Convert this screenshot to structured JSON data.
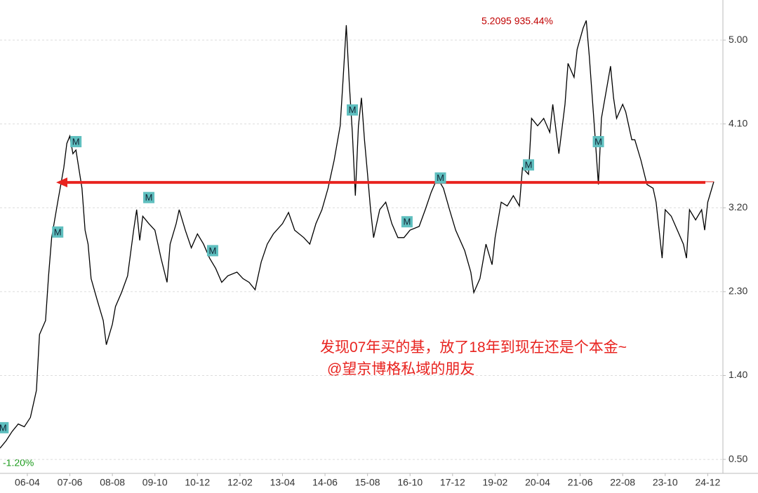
{
  "chart_data": {
    "type": "line",
    "color": "#000000",
    "x": [
      "05-07",
      "05-09",
      "05-11",
      "06-01",
      "06-03",
      "06-05",
      "06-07",
      "06-08",
      "06-10",
      "06-11",
      "06-12",
      "07-02",
      "07-04",
      "07-05",
      "07-06",
      "07-07",
      "07-08",
      "07-10",
      "07-11",
      "07-12",
      "08-01",
      "08-03",
      "08-05",
      "08-06",
      "08-08",
      "08-09",
      "08-11",
      "09-01",
      "09-03",
      "09-04",
      "09-05",
      "09-06",
      "09-08",
      "09-10",
      "09-12",
      "10-02",
      "10-03",
      "10-05",
      "10-06",
      "10-08",
      "10-10",
      "10-12",
      "11-02",
      "11-04",
      "11-06",
      "11-08",
      "11-10",
      "12-01",
      "12-03",
      "12-05",
      "12-07",
      "12-09",
      "12-11",
      "13-01",
      "13-04",
      "13-06",
      "13-08",
      "13-11",
      "14-01",
      "14-03",
      "14-05",
      "14-07",
      "14-09",
      "14-11",
      "14-12",
      "15-01",
      "15-02",
      "15-03",
      "15-04",
      "15-05",
      "15-06",
      "15-07",
      "15-08",
      "15-09",
      "15-10",
      "15-12",
      "16-02",
      "16-04",
      "16-06",
      "16-08",
      "16-10",
      "17-01",
      "17-03",
      "17-05",
      "17-07",
      "17-09",
      "17-11",
      "18-01",
      "18-04",
      "18-06",
      "18-07",
      "18-09",
      "18-11",
      "19-01",
      "19-02",
      "19-04",
      "19-06",
      "19-08",
      "19-10",
      "19-11",
      "20-01",
      "20-02",
      "20-04",
      "20-06",
      "20-08",
      "20-09",
      "20-11",
      "21-01",
      "21-02",
      "21-04",
      "21-05",
      "21-07",
      "21-08",
      "21-09",
      "21-10",
      "21-11",
      "21-12",
      "22-01",
      "22-03",
      "22-04",
      "22-05",
      "22-06",
      "22-08",
      "22-09",
      "22-11",
      "22-12",
      "23-02",
      "23-04",
      "23-06",
      "23-07",
      "23-09",
      "23-10",
      "23-12",
      "24-02",
      "24-04",
      "24-05",
      "24-06",
      "24-08",
      "24-10",
      "24-11",
      "24-12",
      "25-02"
    ],
    "values": [
      0.62,
      0.7,
      0.8,
      0.88,
      0.85,
      0.95,
      1.24,
      1.84,
      1.99,
      2.47,
      2.88,
      3.26,
      3.63,
      3.89,
      3.97,
      3.78,
      3.82,
      3.41,
      2.96,
      2.81,
      2.44,
      2.21,
      1.99,
      1.73,
      1.95,
      2.14,
      2.29,
      2.47,
      2.96,
      3.18,
      2.85,
      3.11,
      3.03,
      2.96,
      2.66,
      2.4,
      2.81,
      3.03,
      3.18,
      2.96,
      2.77,
      2.92,
      2.81,
      2.66,
      2.55,
      2.4,
      2.47,
      2.51,
      2.44,
      2.4,
      2.32,
      2.62,
      2.81,
      2.92,
      3.03,
      3.15,
      2.96,
      2.88,
      2.81,
      3.03,
      3.18,
      3.41,
      3.71,
      4.08,
      4.6,
      5.16,
      4.53,
      4.01,
      3.33,
      4.08,
      4.38,
      3.93,
      3.56,
      3.18,
      2.88,
      3.18,
      3.26,
      3.03,
      2.88,
      2.88,
      2.96,
      3.0,
      3.18,
      3.37,
      3.52,
      3.41,
      3.18,
      2.96,
      2.74,
      2.51,
      2.29,
      2.44,
      2.81,
      2.59,
      2.88,
      3.26,
      3.22,
      3.33,
      3.22,
      3.63,
      3.56,
      4.16,
      4.08,
      4.16,
      4.01,
      4.31,
      3.78,
      4.31,
      4.75,
      4.6,
      4.9,
      5.13,
      5.2095,
      4.83,
      4.38,
      3.93,
      3.45,
      4.16,
      4.53,
      4.72,
      4.38,
      4.16,
      4.31,
      4.23,
      3.93,
      3.93,
      3.71,
      3.45,
      3.41,
      3.26,
      2.66,
      3.18,
      3.11,
      2.96,
      2.81,
      2.66,
      3.18,
      3.07,
      3.18,
      2.96,
      3.26,
      3.48
    ],
    "xlim": [
      "05-07",
      "25-05"
    ],
    "xticks": [
      "06-04",
      "07-06",
      "08-08",
      "09-10",
      "10-12",
      "12-02",
      "13-04",
      "14-06",
      "15-08",
      "16-10",
      "17-12",
      "19-02",
      "20-04",
      "21-06",
      "22-08",
      "23-10",
      "24-12"
    ],
    "ylim": [
      0.35,
      5.43
    ],
    "yticks": [
      {
        "value": 0.5,
        "label": "0.50"
      },
      {
        "value": 1.4,
        "label": "1.40"
      },
      {
        "value": 2.3,
        "label": "2.30"
      },
      {
        "value": 3.2,
        "label": "3.20"
      },
      {
        "value": 4.1,
        "label": "4.10"
      },
      {
        "value": 5,
        "label": "5.00"
      }
    ],
    "grid": true,
    "markers": [
      {
        "x": "05-08",
        "value": 0.84,
        "label": "M"
      },
      {
        "x": "07-02",
        "value": 2.94,
        "label": "M"
      },
      {
        "x": "07-08",
        "value": 3.91,
        "label": "M"
      },
      {
        "x": "09-08",
        "value": 3.31,
        "label": "M"
      },
      {
        "x": "11-05",
        "value": 2.74,
        "label": "M"
      },
      {
        "x": "15-03",
        "value": 4.25,
        "label": "M"
      },
      {
        "x": "16-09",
        "value": 3.05,
        "label": "M"
      },
      {
        "x": "17-08",
        "value": 3.52,
        "label": "M"
      },
      {
        "x": "20-01",
        "value": 3.66,
        "label": "M"
      },
      {
        "x": "21-12",
        "value": 3.91,
        "label": "M"
      }
    ],
    "peak_label": "5.2095 935.44%",
    "start_label": "-1.20%",
    "note": [
      "发现07年买的基，放了18年到现在还是个本金~",
      "@望京博格私域的朋友"
    ]
  }
}
